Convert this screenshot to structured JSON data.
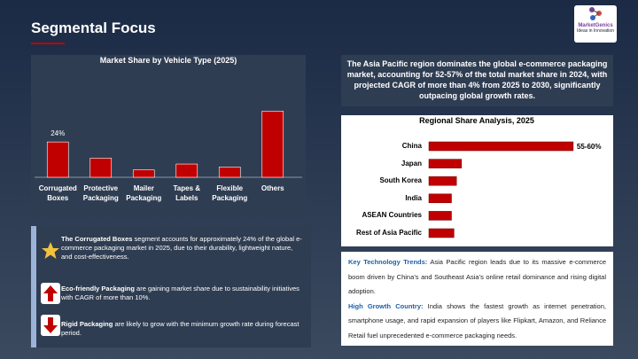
{
  "header": {
    "title": "Segmental Focus",
    "logo": {
      "name": "MarketGenics",
      "tagline": "Ideas in Innovation"
    }
  },
  "chart_data": [
    {
      "type": "bar",
      "title": "Market Share by Vehicle Type (2025)",
      "categories": [
        "Corrugated Boxes",
        "Protective Packaging",
        "Mailer Packaging",
        "Tapes & Labels",
        "Flexible Packaging",
        "Others"
      ],
      "values": [
        24,
        13,
        5,
        9,
        7,
        45
      ],
      "value_labels": [
        "24%",
        null,
        null,
        null,
        null,
        null
      ],
      "color": "#c00000",
      "ylim": [
        0,
        50
      ]
    },
    {
      "type": "hbar",
      "title": "Regional Share Analysis, 2025",
      "categories": [
        "China",
        "Japan",
        "South Korea",
        "India",
        "ASEAN Countries",
        "Rest of Asia Pacific"
      ],
      "values": [
        57.5,
        13,
        11,
        9,
        9,
        10
      ],
      "value_labels": [
        "55-60%",
        null,
        null,
        null,
        null,
        null
      ],
      "color": "#c00000",
      "xlim": [
        0,
        60
      ]
    }
  ],
  "highlight": "The Asia Pacific region dominates the global e-commerce packaging market, accounting for 52-57% of the total market share in 2024, with projected CAGR of more than 4% from 2025 to 2030, significantly outpacing global growth rates.",
  "bullets": [
    {
      "bold": "The Corrugated Boxes",
      "text": " segment accounts for approximately 24% of the global e-commerce packaging market in 2025, due to their durability, lightweight nature, and cost-effectiveness."
    },
    {
      "bold": "Eco-friendly Packaging",
      "text": " are gaining market share due to sustainability initiatives with CAGR of more than 10%."
    },
    {
      "bold": "Rigid Packaging",
      "text": " are likely to grow with the minimum growth rate during forecast period."
    }
  ],
  "insights": [
    {
      "label": "Key Technology Trends:",
      "text": " Asia Pacific region leads due to its massive e-commerce boom driven by China’s and Southeast Asia’s online retail dominance and rising digital adoption."
    },
    {
      "label": "High Growth Country:",
      "text": " India shows the fastest growth as internet penetration, smartphone usage, and rapid expansion of players like Flipkart, Amazon, and Reliance Retail fuel unprecedented e-commerce packaging needs."
    }
  ]
}
